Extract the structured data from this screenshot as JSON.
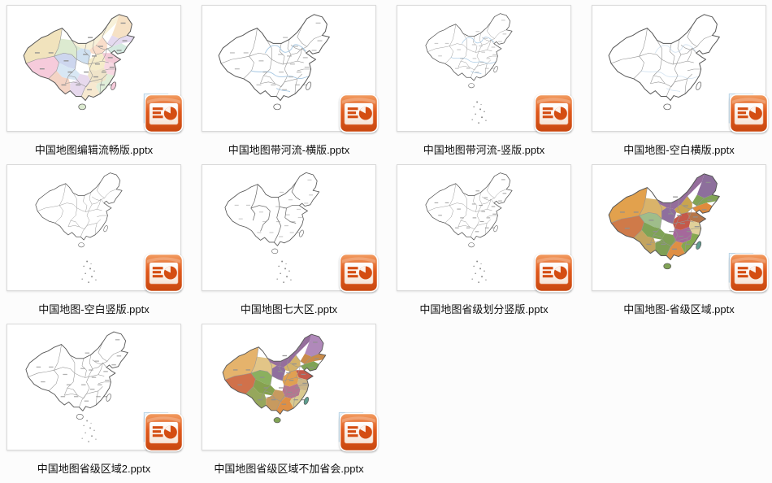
{
  "window": {
    "background_color": "#fcfcfc",
    "view": "file-thumbnail-grid"
  },
  "file_grid": {
    "columns": 4,
    "items": [
      {
        "filename": "中国地图编辑流畅版.pptx",
        "file_type": "pptx",
        "map_variant": "pastel-h",
        "map_description": "China map with pastel colored provinces and labels"
      },
      {
        "filename": "中国地图带河流-横版.pptx",
        "file_type": "pptx",
        "map_variant": "rivers-h",
        "map_description": "Outline China map with rivers, landscape"
      },
      {
        "filename": "中国地图带河流-竖版.pptx",
        "file_type": "pptx",
        "map_variant": "rivers-v",
        "map_description": "Outline China map with rivers, portrait with sea islands"
      },
      {
        "filename": "中国地图-空白横版.pptx",
        "file_type": "pptx",
        "map_variant": "blank-h",
        "map_description": "Blank outline China map, landscape"
      },
      {
        "filename": "中国地图-空白竖版.pptx",
        "file_type": "pptx",
        "map_variant": "blank-v",
        "map_description": "Blank outline China map, portrait with sea islands"
      },
      {
        "filename": "中国地图七大区.pptx",
        "file_type": "pptx",
        "map_variant": "regions",
        "map_description": "China map divided into seven large regions"
      },
      {
        "filename": "中国地图省级划分竖版.pptx",
        "file_type": "pptx",
        "map_variant": "prov-v",
        "map_description": "Province-level outline China map, portrait with sea islands"
      },
      {
        "filename": "中国地图-省级区域.pptx",
        "file_type": "pptx",
        "map_variant": "bold-a",
        "map_description": "China map with saturated colored provinces"
      },
      {
        "filename": "中国地图省级区域2.pptx",
        "file_type": "pptx",
        "map_variant": "prov-h2",
        "map_description": "Province-level outline China map with sea islands"
      },
      {
        "filename": "中国地图省级区域不加省会.pptx",
        "file_type": "pptx",
        "map_variant": "bold-b",
        "map_description": "Colored province China map without capital marks"
      }
    ]
  },
  "powerpoint_icon": {
    "name": "powerpoint-file-icon",
    "body_top_color": "#f29e63",
    "body_color": "#e05a1d",
    "body_bottom_color": "#c8470f",
    "slide_color": "#fdf5ee",
    "glyph_color": "#d44d12"
  },
  "map_colors": {
    "outline": "#565656",
    "province_border": "#949494",
    "region_border": "#6f6f6f",
    "river": "#a3c6e2",
    "island": "#8a8a8a",
    "label": "#8f8f8f",
    "inset_fill": "#eef5fb",
    "inset_stroke": "#9fc4dd",
    "pastel_palette": [
      "#f1e3bd",
      "#f6cbdb",
      "#cdd6ee",
      "#f8f1d9",
      "#dcead0",
      "#f6e1c5",
      "#e4daf0",
      "#d4e9e0",
      "#f9ddca",
      "#f3cad7",
      "#d0e1f1",
      "#f5ecca",
      "#f8d9e3",
      "#d8e7f4",
      "#efe4c9",
      "#e0eed9",
      "#f4d4c5",
      "#e7d9ed",
      "#f7e9d0"
    ],
    "bold_palette_a": [
      "#e2a14d",
      "#cf7a49",
      "#9fbd8a",
      "#946d9b",
      "#d9b36a",
      "#8d6f9c",
      "#81a356",
      "#e08a3c",
      "#c9a44e",
      "#b5764a",
      "#8f6f9e",
      "#c4594a",
      "#e0d09a",
      "#7fa356",
      "#a5689b",
      "#85a84f",
      "#c3a45f",
      "#7f9f55",
      "#df8f45"
    ],
    "bold_palette_b": [
      "#e5b36c",
      "#d0714b",
      "#8bb05f",
      "#956e9c",
      "#e2c587",
      "#b089ba",
      "#c98b4a",
      "#7fa356",
      "#d3b26a",
      "#c4594a",
      "#8f6f9e",
      "#e0a052",
      "#cbb689",
      "#86a14f",
      "#b5768f",
      "#d9c98f",
      "#96a75c",
      "#c79a5f",
      "#de8f45"
    ]
  }
}
